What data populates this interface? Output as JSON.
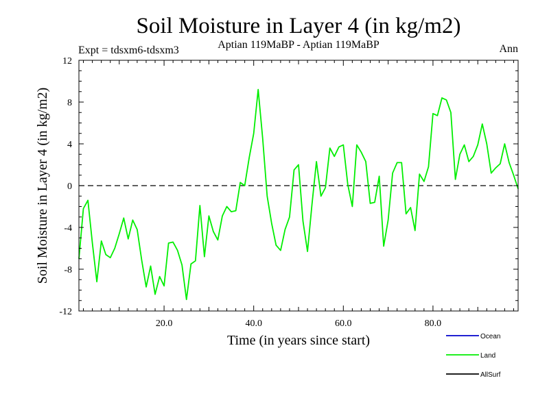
{
  "colors": {
    "ocean": "#0000cc",
    "land": "#00ee00",
    "allsurf": "#000000",
    "axis": "#000000",
    "background": "#ffffff"
  },
  "chart_data": {
    "type": "line",
    "title": "Soil Moisture in Layer 4 (in kg/m2)",
    "subtitle_left": "Expt = tdsxm6-tdsxm3",
    "subtitle_center": "Aptian   119MaBP - Aptian   119MaBP",
    "subtitle_right": "Ann",
    "xlabel": "Time (in years since start)",
    "ylabel": "Soil Moisture in Layer 4 (in kg/m2)",
    "xlim": [
      1,
      99
    ],
    "ylim": [
      -12,
      12
    ],
    "xticks": [
      20,
      40,
      60,
      80
    ],
    "xtick_labels": [
      "20.0",
      "40.0",
      "60.0",
      "80.0"
    ],
    "yticks": [
      -12,
      -8,
      -4,
      0,
      4,
      8,
      12
    ],
    "ytick_labels": [
      "-12",
      "-8",
      "-4",
      "0",
      "4",
      "8",
      "12"
    ],
    "zero_line": "dashed",
    "legend": [
      {
        "name": "Ocean",
        "color": "#0000cc"
      },
      {
        "name": "Land",
        "color": "#00ee00"
      },
      {
        "name": "AllSurf",
        "color": "#000000"
      }
    ],
    "series": [
      {
        "name": "Land",
        "color": "#00ee00",
        "x": [
          1,
          2,
          3,
          4,
          5,
          6,
          7,
          8,
          9,
          10,
          11,
          12,
          13,
          14,
          15,
          16,
          17,
          18,
          19,
          20,
          21,
          22,
          23,
          24,
          25,
          26,
          27,
          28,
          29,
          30,
          31,
          32,
          33,
          34,
          35,
          36,
          37,
          38,
          39,
          40,
          41,
          42,
          43,
          44,
          45,
          46,
          47,
          48,
          49,
          50,
          51,
          52,
          53,
          54,
          55,
          56,
          57,
          58,
          59,
          60,
          61,
          62,
          63,
          64,
          65,
          66,
          67,
          68,
          69,
          70,
          71,
          72,
          73,
          74,
          75,
          76,
          77,
          78,
          79,
          80,
          81,
          82,
          83,
          84,
          85,
          86,
          87,
          88,
          89,
          90,
          91,
          92,
          93,
          94,
          95,
          96,
          97,
          98,
          99
        ],
        "values": [
          -7.0,
          -2.2,
          -1.4,
          -5.5,
          -9.2,
          -5.3,
          -6.6,
          -6.9,
          -6.0,
          -4.6,
          -3.1,
          -5.1,
          -3.3,
          -4.2,
          -7.1,
          -9.7,
          -7.7,
          -10.4,
          -8.7,
          -9.6,
          -5.5,
          -5.4,
          -6.2,
          -7.6,
          -10.9,
          -7.5,
          -7.2,
          -1.9,
          -6.8,
          -2.9,
          -4.4,
          -5.2,
          -2.9,
          -2.0,
          -2.5,
          -2.4,
          0.3,
          0.0,
          2.7,
          5.0,
          9.2,
          4.5,
          -1.0,
          -3.6,
          -5.7,
          -6.2,
          -4.2,
          -3.0,
          1.5,
          2.0,
          -3.4,
          -6.3,
          -1.8,
          2.3,
          -1.0,
          -0.2,
          3.6,
          2.8,
          3.7,
          3.9,
          0.1,
          -2.0,
          3.9,
          3.2,
          2.3,
          -1.7,
          -1.6,
          0.9,
          -5.8,
          -3.3,
          1.2,
          2.2,
          2.2,
          -2.7,
          -2.1,
          -4.3,
          1.1,
          0.4,
          1.8,
          6.9,
          6.7,
          8.4,
          8.2,
          7.0,
          0.6,
          3.0,
          3.9,
          2.3,
          2.8,
          3.9,
          5.9,
          4.0,
          1.2,
          1.7,
          2.1,
          4.0,
          2.2,
          1.0,
          -0.3
        ]
      }
    ]
  }
}
